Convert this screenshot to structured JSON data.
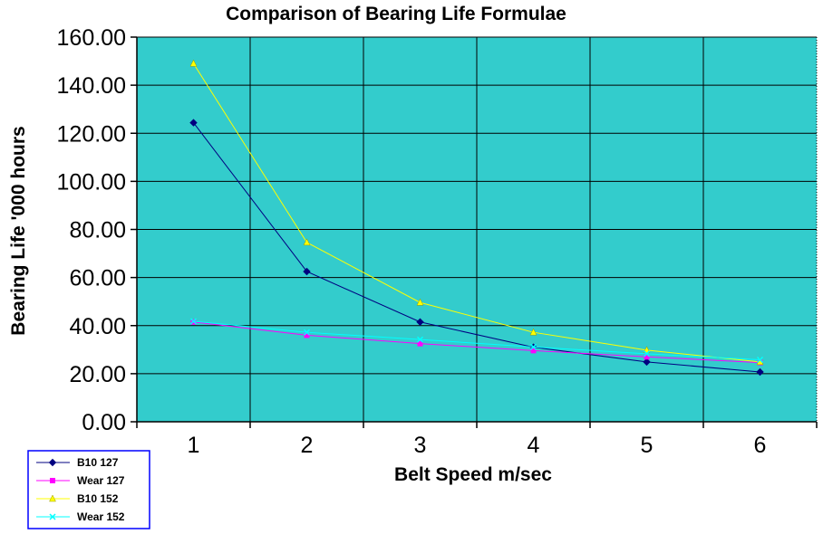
{
  "chart_data": {
    "type": "line",
    "title": "Comparison of Bearing Life Formulae",
    "xlabel": "Belt Speed m/sec",
    "ylabel": "Bearing Life '000 hours",
    "x": [
      1,
      2,
      3,
      4,
      5,
      6
    ],
    "x_tick_labels": [
      "1",
      "2",
      "3",
      "4",
      "5",
      "6"
    ],
    "ylim": [
      0,
      160
    ],
    "y_ticks": [
      0,
      20,
      40,
      60,
      80,
      100,
      120,
      140,
      160
    ],
    "y_tick_labels": [
      "0.00",
      "20.00",
      "40.00",
      "60.00",
      "80.00",
      "100.00",
      "120.00",
      "140.00",
      "160.00"
    ],
    "grid": true,
    "plot_background": "#33cccc",
    "legend_position": "bottom-left",
    "series": [
      {
        "name": "B10 127",
        "color": "#000080",
        "marker": "diamond",
        "values": [
          124.4,
          62.5,
          41.5,
          31.0,
          24.9,
          20.7
        ]
      },
      {
        "name": "Wear 127",
        "color": "#ff00ff",
        "marker": "square",
        "values": [
          41.5,
          36.0,
          32.5,
          29.6,
          27.0,
          24.6
        ]
      },
      {
        "name": "B10 152",
        "color": "#ffff00",
        "marker": "triangle",
        "values": [
          149.0,
          74.6,
          49.6,
          37.2,
          29.8,
          24.9
        ]
      },
      {
        "name": "Wear 152",
        "color": "#00ffff",
        "marker": "x",
        "values": [
          41.8,
          37.2,
          34.2,
          31.1,
          28.3,
          25.8
        ]
      }
    ]
  }
}
